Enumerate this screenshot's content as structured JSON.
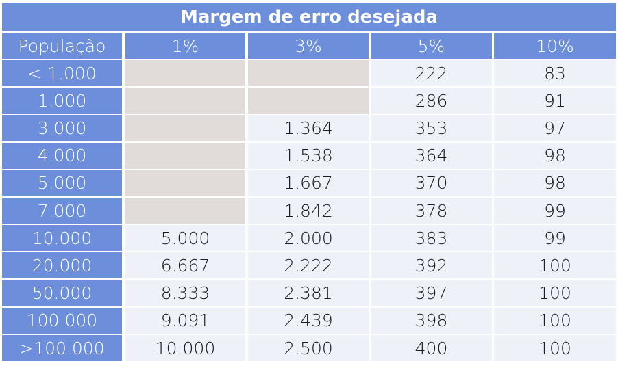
{
  "title": "Margem de erro desejada",
  "table": {
    "header": [
      "População",
      "1%",
      "3%",
      "5%",
      "10%"
    ],
    "rows": [
      [
        "< 1.000",
        null,
        null,
        "222",
        "83"
      ],
      [
        "1.000",
        null,
        null,
        "286",
        "91"
      ],
      [
        "3.000",
        null,
        "1.364",
        "353",
        "97"
      ],
      [
        "4.000",
        null,
        "1.538",
        "364",
        "98"
      ],
      [
        "5.000",
        null,
        "1.667",
        "370",
        "98"
      ],
      [
        "7.000",
        null,
        "1.842",
        "378",
        "99"
      ],
      [
        "10.000",
        "5.000",
        "2.000",
        "383",
        "99"
      ],
      [
        "20.000",
        "6.667",
        "2.222",
        "392",
        "100"
      ],
      [
        "50.000",
        "8.333",
        "2.381",
        "397",
        "100"
      ],
      [
        "100.000",
        "9.091",
        "2.439",
        "398",
        "100"
      ],
      [
        ">100.000",
        "10.000",
        "2.500",
        "400",
        "100"
      ]
    ]
  }
}
